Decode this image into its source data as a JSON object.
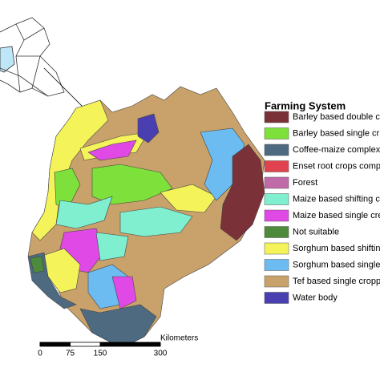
{
  "legend": {
    "title": "Farming System",
    "items": [
      {
        "label": "Barley based double c",
        "color": "#7b3138"
      },
      {
        "label": "Barley based single cr",
        "color": "#7ee03a"
      },
      {
        "label": "Coffee-maize complex",
        "color": "#4d6a80"
      },
      {
        "label": "Enset root crops comp",
        "color": "#e0424f"
      },
      {
        "label": "Forest",
        "color": "#c06aa8"
      },
      {
        "label": "Maize based shifting c",
        "color": "#7fefd0"
      },
      {
        "label": "Maize based single cre",
        "color": "#e049e6"
      },
      {
        "label": "Not suitable",
        "color": "#4e8a3c"
      },
      {
        "label": "Sorghum based shiftin",
        "color": "#f4f45a"
      },
      {
        "label": "Sorghum based single",
        "color": "#6cbcf2"
      },
      {
        "label": "Tef based single cropp",
        "color": "#c8a26a"
      },
      {
        "label": "Water body",
        "color": "#4a3fb0"
      }
    ]
  },
  "scale_bar": {
    "unit": "Kilometers",
    "ticks": [
      0,
      75,
      150,
      300
    ]
  }
}
